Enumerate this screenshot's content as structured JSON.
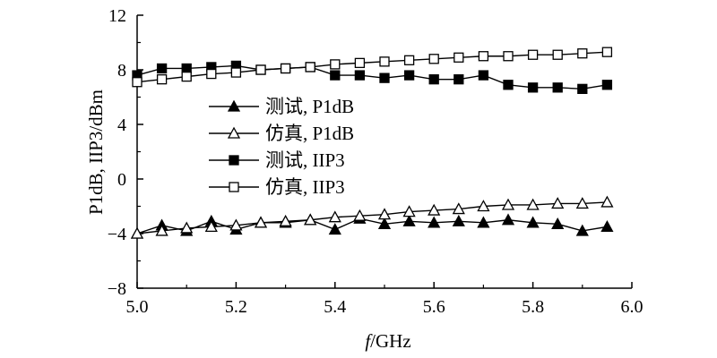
{
  "chart_data": {
    "type": "line",
    "title": "",
    "xlabel": {
      "italic_part": "f",
      "rest": "/GHz"
    },
    "ylabel": "P1dB, IIP3/dBm",
    "xlim": [
      5.0,
      6.0
    ],
    "ylim": [
      -8,
      12
    ],
    "xticks": [
      "5.0",
      "5.2",
      "5.4",
      "5.6",
      "5.8",
      "6.0"
    ],
    "yticks": [
      "12",
      "8",
      "4",
      "0",
      "−4",
      "−8"
    ],
    "grid": false,
    "legend_position": "center-left",
    "x": [
      5.0,
      5.05,
      5.1,
      5.15,
      5.2,
      5.25,
      5.3,
      5.35,
      5.4,
      5.45,
      5.5,
      5.55,
      5.6,
      5.65,
      5.7,
      5.75,
      5.8,
      5.85,
      5.9,
      5.95
    ],
    "series": [
      {
        "name": "测试, P1dB",
        "marker": "filled-triangle",
        "values": [
          -4.0,
          -3.4,
          -3.8,
          -3.1,
          -3.7,
          -3.2,
          -3.2,
          -3.0,
          -3.7,
          -2.9,
          -3.3,
          -3.1,
          -3.2,
          -3.1,
          -3.2,
          -3.0,
          -3.2,
          -3.3,
          -3.8,
          -3.5
        ]
      },
      {
        "name": "仿真, P1dB",
        "marker": "hollow-triangle",
        "values": [
          -4.0,
          -3.8,
          -3.6,
          -3.5,
          -3.4,
          -3.2,
          -3.1,
          -3.0,
          -2.8,
          -2.7,
          -2.6,
          -2.4,
          -2.3,
          -2.2,
          -2.0,
          -1.9,
          -1.9,
          -1.8,
          -1.8,
          -1.7
        ]
      },
      {
        "name": "测试, IIP3",
        "marker": "filled-square",
        "values": [
          7.6,
          8.1,
          8.1,
          8.2,
          8.3,
          8.0,
          8.1,
          8.2,
          7.6,
          7.6,
          7.4,
          7.6,
          7.3,
          7.3,
          7.6,
          6.9,
          6.7,
          6.7,
          6.6,
          6.9
        ]
      },
      {
        "name": "仿真, IIP3",
        "marker": "hollow-square",
        "values": [
          7.1,
          7.3,
          7.5,
          7.7,
          7.8,
          8.0,
          8.1,
          8.2,
          8.4,
          8.5,
          8.6,
          8.7,
          8.8,
          8.9,
          9.0,
          9.0,
          9.1,
          9.1,
          9.2,
          9.3
        ]
      }
    ]
  }
}
